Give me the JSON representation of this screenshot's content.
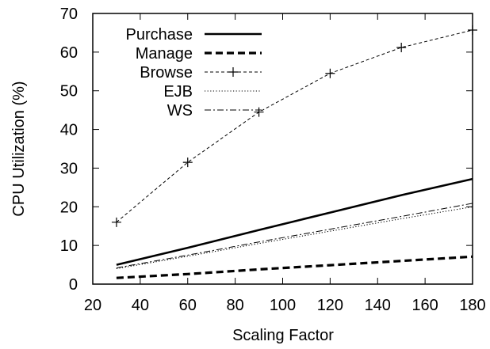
{
  "chart_data": {
    "type": "line",
    "title": "",
    "xlabel": "Scaling Factor",
    "ylabel": "CPU Utilization (%)",
    "xlim": [
      20,
      180
    ],
    "ylim": [
      0,
      70
    ],
    "xticks": [
      20,
      40,
      60,
      80,
      100,
      120,
      140,
      160,
      180
    ],
    "yticks": [
      0,
      10,
      20,
      30,
      40,
      50,
      60,
      70
    ],
    "grid": false,
    "legend_position": "top-left",
    "series": [
      {
        "name": "Purchase",
        "style": "solid-thick",
        "color": "#000000",
        "x": [
          30,
          60,
          90,
          120,
          150,
          180
        ],
        "y": [
          5,
          9.4,
          14.0,
          18.5,
          23.0,
          27.2
        ]
      },
      {
        "name": "Manage",
        "style": "dashed-thick",
        "color": "#000000",
        "x": [
          30,
          60,
          90,
          120,
          150,
          180
        ],
        "y": [
          1.6,
          2.6,
          3.8,
          4.9,
          6.0,
          7.1
        ]
      },
      {
        "name": "Browse",
        "style": "dashed-plus",
        "color": "#000000",
        "x": [
          30,
          60,
          90,
          120,
          150,
          180
        ],
        "y": [
          16,
          31.5,
          44.5,
          54.5,
          61.2,
          65.7
        ]
      },
      {
        "name": "EJB",
        "style": "dotted",
        "color": "#000000",
        "x": [
          30,
          60,
          90,
          120,
          150,
          180
        ],
        "y": [
          4.0,
          7.2,
          10.5,
          13.7,
          16.9,
          20.0
        ]
      },
      {
        "name": "WS",
        "style": "dashdot",
        "color": "#000000",
        "x": [
          30,
          60,
          90,
          120,
          150,
          180
        ],
        "y": [
          4.2,
          7.5,
          10.9,
          14.2,
          17.5,
          20.9
        ]
      }
    ]
  }
}
